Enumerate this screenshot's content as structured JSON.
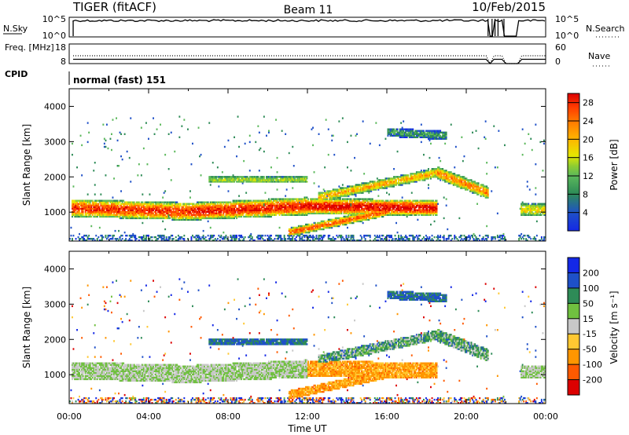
{
  "header": {
    "left": "TIGER (fitACF)",
    "center": "Beam 11",
    "right": "10/Feb/2015"
  },
  "chart_data": [
    {
      "type": "line",
      "title": "",
      "left_label": "N.Sky",
      "right_label": "N.Search",
      "left_ticks": [
        "10^5",
        "10^0"
      ],
      "right_ticks": [
        "10^5",
        "10^0"
      ],
      "gaps_hours": [
        [
          21.1,
          21.2
        ],
        [
          21.3,
          21.35
        ],
        [
          21.45,
          21.5
        ],
        [
          21.6,
          21.65
        ],
        [
          21.9,
          22.6
        ]
      ]
    },
    {
      "type": "line",
      "left_label": "Freq. [MHz]",
      "right_label": "Nave",
      "left_ticks": [
        "18",
        "8"
      ],
      "right_ticks": [
        "60",
        "0"
      ],
      "freq_mhz": 10.2,
      "nave": 24
    },
    {
      "type": "table",
      "label": "CPID",
      "value": "normal (fast) 151"
    },
    {
      "type": "heatmap",
      "panel": "power",
      "ylabel": "Slant Range [km]",
      "yticks": [
        1000,
        2000,
        3000,
        4000
      ],
      "ylim": [
        180,
        4500
      ],
      "xlim_hours": [
        0,
        24
      ],
      "colorbar_label": "Power [dB]",
      "colorbar_ticks": [
        4,
        8,
        12,
        16,
        20,
        24,
        28
      ],
      "colorbar_range": [
        0,
        30
      ],
      "colors": [
        "#1428e6",
        "#1e50c8",
        "#2e8b57",
        "#5bb85b",
        "#8ccc33",
        "#e6e600",
        "#ffb400",
        "#ff7800",
        "#ff3c00",
        "#dc0000"
      ],
      "bands": [
        {
          "start_hour": 0.1,
          "end_hour": 6,
          "range_start_km": 1100,
          "range_end_km": 1000,
          "width_km": 500,
          "peak_db": 26
        },
        {
          "start_hour": 6,
          "end_hour": 12,
          "range_start_km": 1000,
          "range_end_km": 1150,
          "width_km": 500,
          "peak_db": 27
        },
        {
          "start_hour": 12,
          "end_hour": 18.5,
          "range_start_km": 1150,
          "range_end_km": 1100,
          "width_km": 450,
          "peak_db": 28
        },
        {
          "start_hour": 11,
          "end_hour": 16,
          "range_start_km": 400,
          "range_end_km": 1000,
          "width_km": 250,
          "peak_db": 24
        },
        {
          "start_hour": 12.5,
          "end_hour": 18.5,
          "range_start_km": 1400,
          "range_end_km": 2100,
          "width_km": 280,
          "peak_db": 20
        },
        {
          "start_hour": 18.5,
          "end_hour": 21.2,
          "range_start_km": 2100,
          "range_end_km": 1500,
          "width_km": 350,
          "peak_db": 22
        },
        {
          "start_hour": 22.7,
          "end_hour": 24,
          "range_start_km": 1050,
          "range_end_km": 1050,
          "width_km": 350,
          "peak_db": 18
        },
        {
          "start_hour": 7,
          "end_hour": 12,
          "range_start_km": 1900,
          "range_end_km": 1900,
          "width_km": 200,
          "peak_db": 14
        },
        {
          "start_hour": 16,
          "end_hour": 19,
          "range_start_km": 3250,
          "range_end_km": 3150,
          "width_km": 250,
          "peak_db": 9
        }
      ]
    },
    {
      "type": "heatmap",
      "panel": "velocity",
      "xlabel": "Time UT",
      "ylabel": "Slant Range [km]",
      "yticks": [
        1000,
        2000,
        3000,
        4000
      ],
      "ylim": [
        180,
        4500
      ],
      "xlim_hours": [
        0,
        24
      ],
      "xticks": [
        "00:00",
        "04:00",
        "08:00",
        "12:00",
        "16:00",
        "20:00",
        "00:00"
      ],
      "colorbar_label": "Velocity [m s⁻¹]",
      "colorbar_ticks": [
        200,
        100,
        50,
        15,
        -15,
        -50,
        -100,
        -200
      ],
      "colors": [
        "#dc0000",
        "#ff5a00",
        "#ff9600",
        "#ffc832",
        "#c8c8c8",
        "#70c040",
        "#2e8b57",
        "#1e50c8",
        "#1428e6"
      ]
    }
  ]
}
